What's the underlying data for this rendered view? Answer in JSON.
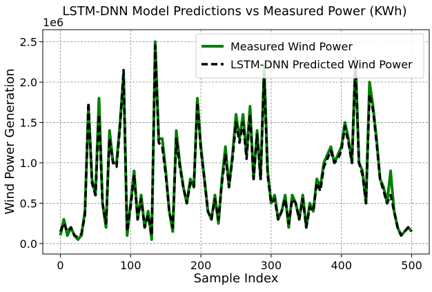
{
  "chart_data": {
    "type": "line",
    "title": "LSTM-DNN Model Predictions vs Measured Power (KWh)",
    "x_label": "Sample Index",
    "y_label": "Wind Power Generation",
    "y_offset_label": "1e6",
    "x": [
      0,
      5,
      10,
      15,
      20,
      25,
      30,
      35,
      40,
      45,
      50,
      55,
      60,
      65,
      70,
      75,
      80,
      85,
      90,
      95,
      100,
      105,
      110,
      115,
      120,
      125,
      130,
      135,
      140,
      145,
      150,
      155,
      160,
      165,
      170,
      175,
      180,
      185,
      190,
      195,
      200,
      205,
      210,
      215,
      220,
      225,
      230,
      235,
      240,
      245,
      250,
      255,
      260,
      265,
      270,
      275,
      280,
      285,
      290,
      295,
      300,
      305,
      310,
      315,
      320,
      325,
      330,
      335,
      340,
      345,
      350,
      355,
      360,
      365,
      370,
      375,
      380,
      385,
      390,
      395,
      400,
      405,
      410,
      415,
      420,
      425,
      430,
      435,
      440,
      445,
      450,
      455,
      460,
      465,
      470,
      475,
      480,
      485,
      490,
      495,
      500
    ],
    "series": [
      {
        "name": "Measured Wind Power",
        "color": "#008000",
        "dash": false,
        "values": [
          0.1,
          0.3,
          0.1,
          0.2,
          0.1,
          0.05,
          0.1,
          0.4,
          1.7,
          0.8,
          0.6,
          1.8,
          0.5,
          0.2,
          1.4,
          1.0,
          1.0,
          1.5,
          2.1,
          0.1,
          0.5,
          0.9,
          0.3,
          0.6,
          0.2,
          0.4,
          0.05,
          2.5,
          1.3,
          1.3,
          0.9,
          0.4,
          0.15,
          1.4,
          1.0,
          0.7,
          0.5,
          0.8,
          0.7,
          1.8,
          1.2,
          0.8,
          0.4,
          0.3,
          0.6,
          0.25,
          0.8,
          1.2,
          0.7,
          1.1,
          1.6,
          1.3,
          1.6,
          1.1,
          1.7,
          0.8,
          1.4,
          0.8,
          2.2,
          0.9,
          0.5,
          0.6,
          0.3,
          0.4,
          0.6,
          0.2,
          0.6,
          0.5,
          0.3,
          0.6,
          0.2,
          0.5,
          0.4,
          0.8,
          0.7,
          1.0,
          1.1,
          1.2,
          1.0,
          1.1,
          1.2,
          1.5,
          1.3,
          1.0,
          2.3,
          1.0,
          0.9,
          0.5,
          2.0,
          1.7,
          1.3,
          0.8,
          0.7,
          0.5,
          0.9,
          0.4,
          0.2,
          0.1,
          0.15,
          0.2,
          0.15
        ]
      },
      {
        "name": "LSTM-DNN Predicted Wind Power",
        "color": "#000000",
        "dash": true,
        "values": [
          0.15,
          0.25,
          0.15,
          0.2,
          0.1,
          0.08,
          0.12,
          0.35,
          1.75,
          0.75,
          0.6,
          1.6,
          0.5,
          0.25,
          1.3,
          1.0,
          0.95,
          1.45,
          2.15,
          0.15,
          0.45,
          0.85,
          0.3,
          0.55,
          0.2,
          0.35,
          0.1,
          2.45,
          1.25,
          1.2,
          0.85,
          0.4,
          0.2,
          1.3,
          0.95,
          0.7,
          0.5,
          0.75,
          0.7,
          1.75,
          1.15,
          0.8,
          0.4,
          0.3,
          0.55,
          0.3,
          0.75,
          1.1,
          0.7,
          1.05,
          1.5,
          1.25,
          1.5,
          1.05,
          1.6,
          0.8,
          1.35,
          0.8,
          2.1,
          0.85,
          0.5,
          0.55,
          0.3,
          0.4,
          0.55,
          0.25,
          0.55,
          0.5,
          0.3,
          0.55,
          0.2,
          0.45,
          0.4,
          0.75,
          0.65,
          0.95,
          1.05,
          1.15,
          1.0,
          1.05,
          1.15,
          1.45,
          1.25,
          1.0,
          2.2,
          1.0,
          0.85,
          0.5,
          1.85,
          1.65,
          1.25,
          0.8,
          0.65,
          0.5,
          0.6,
          0.4,
          0.2,
          0.1,
          0.15,
          0.2,
          0.15
        ]
      }
    ],
    "xlim": [
      -25,
      525
    ],
    "ylim": [
      -0.13,
      2.65
    ],
    "xticks": [
      0,
      100,
      200,
      300,
      400,
      500
    ],
    "yticks": [
      {
        "value": 0,
        "label": "0.0"
      },
      {
        "value": 0.5,
        "label": "0.5"
      },
      {
        "value": 1,
        "label": "1.0"
      },
      {
        "value": 1.5,
        "label": "1.5"
      },
      {
        "value": 2,
        "label": "2.0"
      },
      {
        "value": 2.5,
        "label": "2.5"
      }
    ],
    "grid": true,
    "legend": "upper right"
  }
}
